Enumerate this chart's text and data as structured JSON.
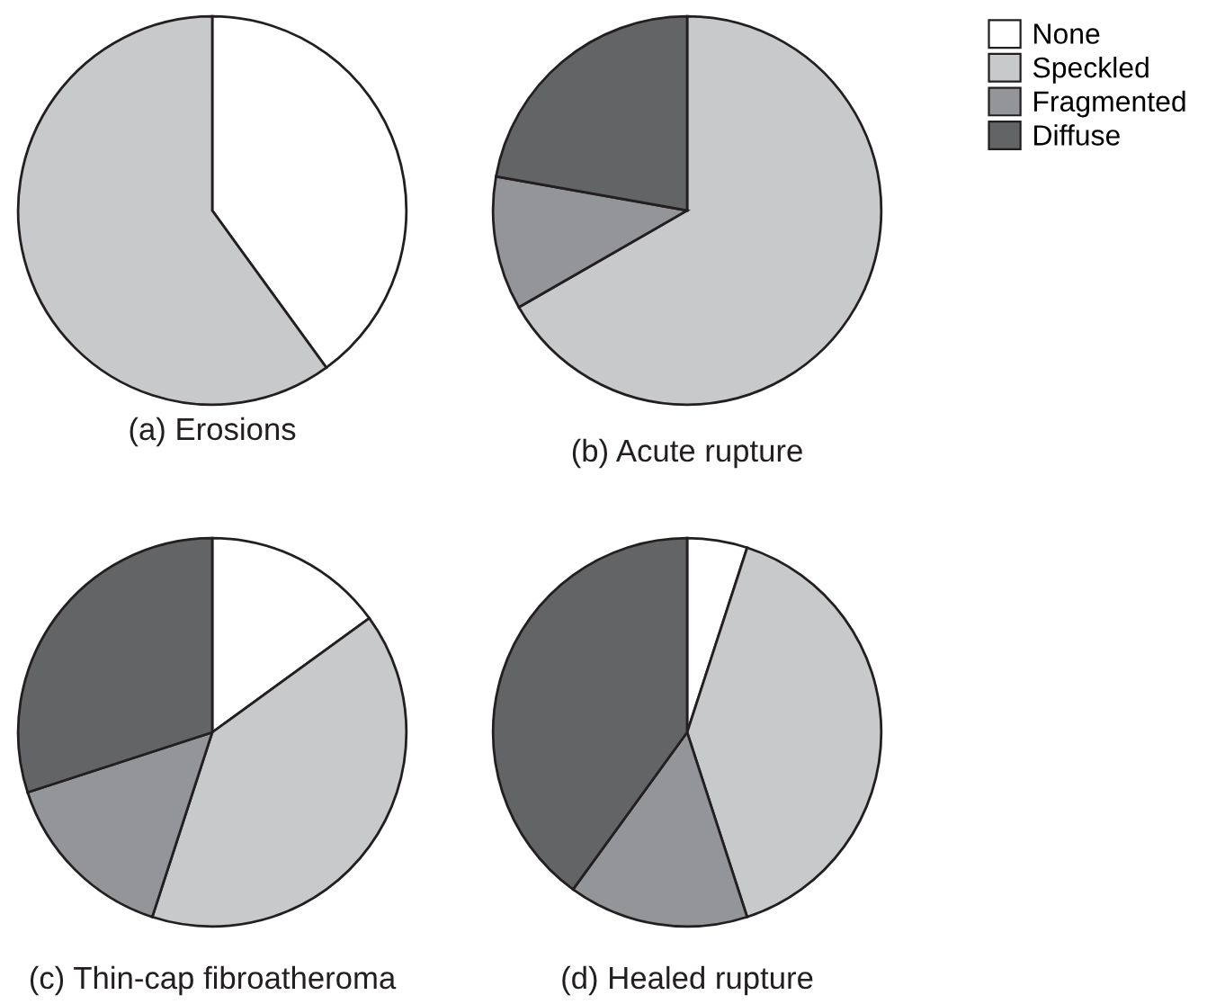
{
  "chart_data": [
    {
      "type": "pie",
      "xlabel": "(a) Erosions",
      "categories": [
        "None",
        "Speckled",
        "Fragmented",
        "Diffuse"
      ],
      "values": [
        40,
        60,
        0,
        0
      ],
      "colors": [
        "#ffffff",
        "#c8c9cb",
        "#939598",
        "#636466"
      ],
      "legend": "top right"
    },
    {
      "type": "pie",
      "xlabel": "(b) Acute rupture",
      "categories": [
        null,
        null,
        null,
        null
      ],
      "values": [
        0,
        66.7,
        11.1,
        22.2
      ],
      "colors": [
        "#ffffff",
        "#c8c9cb",
        "#939598",
        "#636466"
      ]
    },
    {
      "type": "pie",
      "xlabel": "(c) Thin-cap fibroatheroma",
      "categories": [
        null,
        null,
        null,
        null
      ],
      "values": [
        15,
        40,
        15,
        30
      ],
      "colors": [
        "#ffffff",
        "#c8c9cb",
        "#939598",
        "#636466"
      ]
    },
    {
      "type": "pie",
      "xlabel": "(d) Healed rupture",
      "categories": [
        null,
        null,
        null,
        null
      ],
      "values": [
        5,
        40,
        15,
        40
      ],
      "colors": [
        "#ffffff",
        "#c8c9cb",
        "#939598",
        "#636466"
      ]
    }
  ]
}
